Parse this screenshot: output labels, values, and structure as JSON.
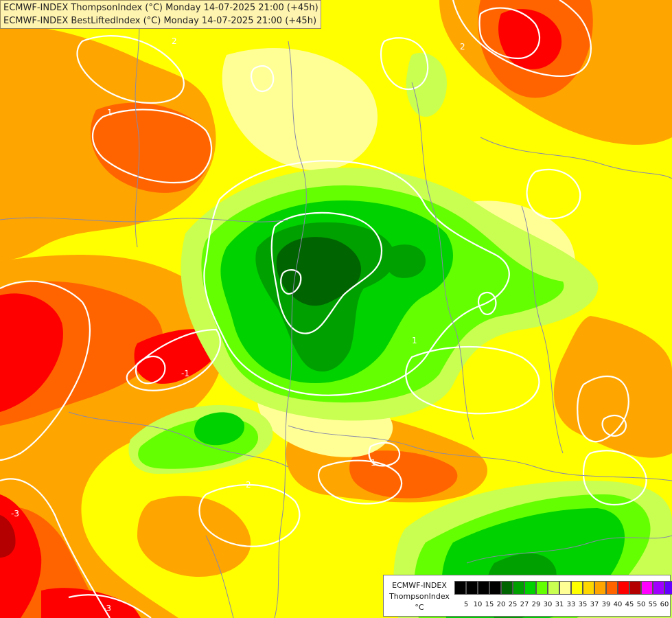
{
  "title": {
    "line1": "ECMWF-INDEX ThompsonIndex (°C) Monday 14-07-2025 21:00 (+45h)",
    "line2": "ECMWF-INDEX BestLiftedIndex (°C) Monday 14-07-2025 21:00 (+45h)"
  },
  "legend": {
    "model": "ECMWF-INDEX",
    "parameter": "ThompsonIndex",
    "unit": "°C",
    "ticks": [
      "5",
      "10",
      "15",
      "20",
      "25",
      "27",
      "29",
      "30",
      "31",
      "33",
      "35",
      "37",
      "39",
      "40",
      "45",
      "50",
      "55",
      "60"
    ],
    "colors": [
      "#000000",
      "#000000",
      "#000000",
      "#000000",
      "#006400",
      "#00a000",
      "#00d200",
      "#64ff00",
      "#c8ff50",
      "#ffff96",
      "#ffff00",
      "#ffd700",
      "#ffa500",
      "#ff6400",
      "#ff0000",
      "#b40000",
      "#ff00ff",
      "#a000ff",
      "#6400ff",
      "#0000ff"
    ]
  },
  "contour_labels": [
    "2",
    "1",
    "1",
    "-1",
    "2",
    "-3",
    "-3",
    "1",
    "2"
  ],
  "colors": {
    "yellow": "#ffff00",
    "light_yellow": "#ffff96",
    "gold": "#ffd700",
    "orange": "#ffa500",
    "dark_orange": "#ff6400",
    "red": "#ff0000",
    "dark_red": "#b40000",
    "yellow_green": "#c8ff50",
    "lime": "#64ff00",
    "green": "#00d200",
    "mid_green": "#00a000",
    "dark_green": "#006400",
    "contour": "#ffffff",
    "border": "#8888aa"
  }
}
